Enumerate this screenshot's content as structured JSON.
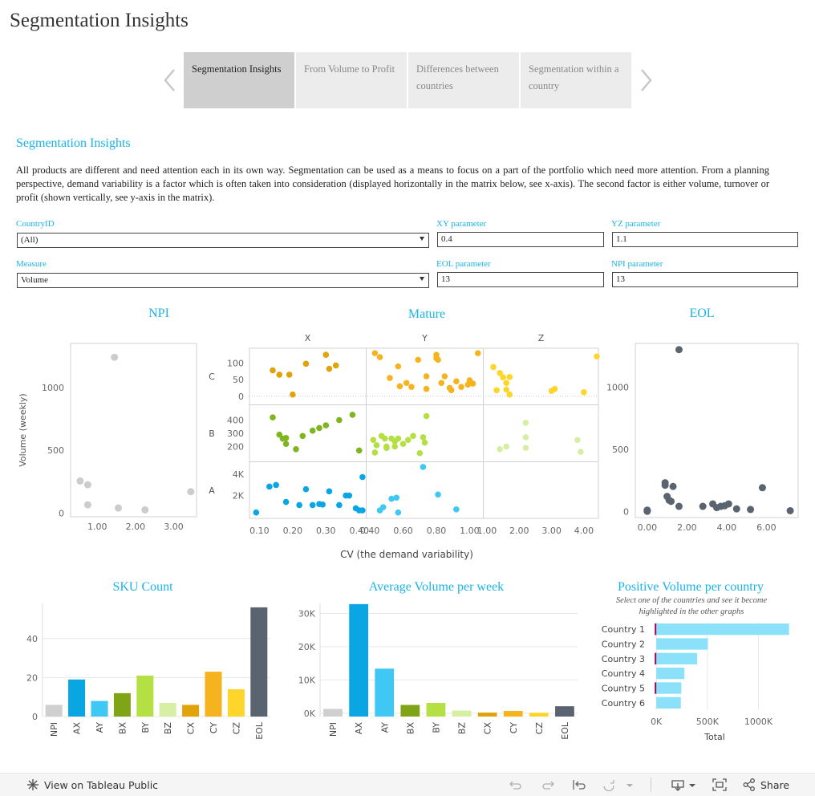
{
  "page": {
    "title": "Segmentation Insights"
  },
  "tabs": [
    {
      "label": "Segmentation Insights",
      "active": true
    },
    {
      "label": "From Volume to Profit",
      "active": false
    },
    {
      "label": "Differences between countries",
      "active": false
    },
    {
      "label": "Segmentation within a country",
      "active": false
    }
  ],
  "section": {
    "heading": "Segmentation Insights",
    "intro": "All products are different and need attention each in its own way. Segmentation can be used as a means to focus on a part of the portfolio which need more attention. From a planning perspective, demand variability is a factor which is often taken into consideration (displayed horizontally in the matrix below, see x-axis). The second factor is either volume, turnover or profit (shown vertically, see y-axis in the matrix)."
  },
  "filters": {
    "country": {
      "label": "CountryID",
      "value": "(All)"
    },
    "measure": {
      "label": "Measure",
      "value": "Volume"
    },
    "xy": {
      "label": "XY parameter",
      "value": "0.4"
    },
    "yz": {
      "label": "YZ parameter",
      "value": "1.1"
    },
    "eol": {
      "label": "EOL parameter",
      "value": "13"
    },
    "npi": {
      "label": "NPI parameter",
      "value": "13"
    }
  },
  "colors": {
    "accent": "#1ab4e6",
    "A": "#29b6e8",
    "B": "#7fb51e",
    "C": "#f5b41f",
    "npi": "#cccccc",
    "eol": "#5a6470",
    "highlight": "#a0005a"
  },
  "chart_data": [
    {
      "id": "npi",
      "type": "scatter",
      "title": "NPI",
      "ylabel": "Volume (weekly)",
      "xlim": [
        0.3,
        3.6
      ],
      "ylim": [
        -30,
        1350
      ],
      "xticks": [
        1.0,
        2.0,
        3.0
      ],
      "xtick_labels": [
        "1.00",
        "2.00",
        "3.00"
      ],
      "yticks": [
        0,
        500,
        1000
      ],
      "ytick_labels": [
        "0",
        "500",
        "1000"
      ],
      "points": [
        [
          1.45,
          1240
        ],
        [
          0.55,
          255
        ],
        [
          0.75,
          225
        ],
        [
          0.75,
          65
        ],
        [
          1.55,
          40
        ],
        [
          2.25,
          25
        ],
        [
          3.45,
          170
        ]
      ]
    },
    {
      "id": "mature",
      "type": "scatter",
      "title": "Mature",
      "xlabel": "CV (the demand variability)",
      "columns": [
        "X",
        "Y",
        "Z"
      ],
      "rows": [
        "C",
        "B",
        "A"
      ],
      "col_ranges": [
        [
          0.07,
          0.42
        ],
        [
          0.38,
          1.08
        ],
        [
          0.9,
          4.45
        ]
      ],
      "col_ticks": [
        [
          0.1,
          0.2,
          0.3,
          0.4
        ],
        [
          0.4,
          0.6,
          0.8,
          1.0
        ],
        [
          1.0,
          2.0,
          3.0,
          4.0
        ]
      ],
      "col_tick_labels": [
        [
          "0.10",
          "0.20",
          "0.30",
          "0.40"
        ],
        [
          "0.40",
          "0.60",
          "0.80",
          "1.00"
        ],
        [
          "1.00",
          "2.00",
          "3.00",
          "4.00"
        ]
      ],
      "row_ranges": [
        [
          -20,
          140
        ],
        [
          100,
          500
        ],
        [
          0,
          5000
        ]
      ],
      "row_ticks": [
        [
          0,
          50,
          100
        ],
        [
          200,
          300,
          400
        ],
        [
          2000,
          4000
        ]
      ],
      "row_tick_labels": [
        [
          "0",
          "50",
          "100"
        ],
        [
          "200",
          "300",
          "400"
        ],
        [
          "2K",
          "4K"
        ]
      ],
      "cells": [
        {
          "col": 0,
          "row": 0,
          "points": [
            [
              0.14,
              78
            ],
            [
              0.16,
              65
            ],
            [
              0.19,
              65
            ],
            [
              0.24,
              98
            ],
            [
              0.2,
              5
            ],
            [
              0.3,
              125
            ],
            [
              0.31,
              83
            ],
            [
              0.33,
              93
            ]
          ]
        },
        {
          "col": 1,
          "row": 0,
          "points": [
            [
              0.43,
              130
            ],
            [
              0.46,
              118
            ],
            [
              0.52,
              55
            ],
            [
              0.57,
              90
            ],
            [
              0.58,
              30
            ],
            [
              0.62,
              40
            ],
            [
              0.65,
              28
            ],
            [
              0.69,
              110
            ],
            [
              0.74,
              22
            ],
            [
              0.8,
              115
            ],
            [
              0.8,
              125
            ],
            [
              0.81,
              110
            ],
            [
              0.83,
              40
            ],
            [
              0.85,
              60
            ],
            [
              0.88,
              25
            ],
            [
              0.89,
              18
            ],
            [
              0.92,
              45
            ],
            [
              0.95,
              28
            ],
            [
              0.99,
              35
            ],
            [
              1.0,
              48
            ],
            [
              1.02,
              38
            ],
            [
              1.05,
              130
            ],
            [
              0.74,
              60
            ]
          ]
        },
        {
          "col": 2,
          "row": 0,
          "points": [
            [
              1.2,
              88
            ],
            [
              1.4,
              70
            ],
            [
              1.5,
              57
            ],
            [
              1.6,
              40
            ],
            [
              1.7,
              58
            ],
            [
              1.6,
              20
            ],
            [
              1.7,
              5
            ],
            [
              1.3,
              18
            ],
            [
              3.0,
              16
            ],
            [
              3.1,
              22
            ],
            [
              4.0,
              12
            ],
            [
              4.4,
              120
            ]
          ]
        },
        {
          "col": 0,
          "row": 1,
          "points": [
            [
              0.14,
              420
            ],
            [
              0.16,
              290
            ],
            [
              0.17,
              260
            ],
            [
              0.18,
              220
            ],
            [
              0.18,
              265
            ],
            [
              0.23,
              280
            ],
            [
              0.26,
              320
            ],
            [
              0.28,
              340
            ],
            [
              0.3,
              360
            ],
            [
              0.34,
              400
            ],
            [
              0.38,
              440
            ],
            [
              0.4,
              170
            ],
            [
              0.21,
              180
            ]
          ]
        },
        {
          "col": 1,
          "row": 1,
          "points": [
            [
              0.42,
              250
            ],
            [
              0.44,
              210
            ],
            [
              0.47,
              280
            ],
            [
              0.49,
              260
            ],
            [
              0.5,
              190
            ],
            [
              0.53,
              260
            ],
            [
              0.55,
              240
            ],
            [
              0.57,
              260
            ],
            [
              0.6,
              220
            ],
            [
              0.63,
              250
            ],
            [
              0.66,
              280
            ],
            [
              0.7,
              150
            ],
            [
              0.72,
              270
            ],
            [
              0.73,
              230
            ],
            [
              0.74,
              430
            ],
            [
              0.55,
              200
            ],
            [
              0.5,
              200
            ],
            [
              0.43,
              155
            ]
          ]
        },
        {
          "col": 2,
          "row": 1,
          "points": [
            [
              1.4,
              180
            ],
            [
              1.6,
              200
            ],
            [
              2.2,
              190
            ],
            [
              2.2,
              270
            ],
            [
              2.2,
              380
            ],
            [
              3.8,
              250
            ],
            [
              3.9,
              160
            ]
          ]
        },
        {
          "col": 0,
          "row": 2,
          "points": [
            [
              0.09,
              400
            ],
            [
              0.13,
              2850
            ],
            [
              0.15,
              3000
            ],
            [
              0.18,
              1400
            ],
            [
              0.22,
              1100
            ],
            [
              0.24,
              2600
            ],
            [
              0.26,
              1100
            ],
            [
              0.28,
              1200
            ],
            [
              0.29,
              1150
            ],
            [
              0.31,
              2400
            ],
            [
              0.34,
              1100
            ],
            [
              0.36,
              2000
            ],
            [
              0.37,
              2000
            ],
            [
              0.39,
              800
            ],
            [
              0.4,
              600
            ],
            [
              0.41,
              3750
            ],
            [
              0.41,
              600
            ]
          ]
        },
        {
          "col": 1,
          "row": 2,
          "points": [
            [
              0.46,
              600
            ],
            [
              0.48,
              900
            ],
            [
              0.53,
              1700
            ],
            [
              0.56,
              1800
            ],
            [
              0.57,
              400
            ],
            [
              0.72,
              4700
            ],
            [
              0.81,
              2100
            ],
            [
              0.92,
              700
            ]
          ]
        },
        {
          "col": 2,
          "row": 2,
          "points": []
        }
      ]
    },
    {
      "id": "eol",
      "type": "scatter",
      "title": "EOL",
      "xlim": [
        -0.6,
        7.6
      ],
      "ylim": [
        -50,
        1350
      ],
      "xticks": [
        0,
        2,
        4,
        6
      ],
      "xtick_labels": [
        "0.00",
        "2.00",
        "4.00",
        "6.00"
      ],
      "yticks": [
        0,
        500,
        1000
      ],
      "ytick_labels": [
        "0",
        "500",
        "1000"
      ],
      "points": [
        [
          1.6,
          1300
        ],
        [
          0,
          5
        ],
        [
          0,
          0
        ],
        [
          0,
          10
        ],
        [
          0.9,
          230
        ],
        [
          0.9,
          210
        ],
        [
          1.0,
          120
        ],
        [
          1.1,
          90
        ],
        [
          1.2,
          80
        ],
        [
          1.3,
          200
        ],
        [
          1.6,
          40
        ],
        [
          2.8,
          40
        ],
        [
          3.3,
          60
        ],
        [
          3.5,
          30
        ],
        [
          3.7,
          40
        ],
        [
          3.9,
          45
        ],
        [
          4.1,
          60
        ],
        [
          4.5,
          20
        ],
        [
          5.2,
          15
        ],
        [
          5.8,
          190
        ],
        [
          7.2,
          5
        ]
      ]
    },
    {
      "id": "sku-count",
      "type": "bar",
      "title": "SKU Count",
      "categories": [
        "NPI",
        "AX",
        "AY",
        "BX",
        "BY",
        "BZ",
        "CX",
        "CY",
        "CZ",
        "EOL"
      ],
      "values": [
        6,
        19,
        8,
        12,
        21,
        7,
        6,
        23,
        14,
        56
      ],
      "ylim": [
        0,
        58
      ],
      "yticks": [
        0,
        20,
        40
      ],
      "ytick_labels": [
        "0",
        "20",
        "40"
      ],
      "colors": [
        "#cfcfcf",
        "#0aa5e3",
        "#3fc8f3",
        "#7fa516",
        "#b4e043",
        "#d6efa3",
        "#e1a30b",
        "#f5b41f",
        "#fed52b",
        "#5a6470"
      ]
    },
    {
      "id": "avg-volume",
      "type": "bar",
      "title": "Average Volume per week",
      "categories": [
        "NPI",
        "AX",
        "AY",
        "BX",
        "BY",
        "BZ",
        "CX",
        "CY",
        "CZ",
        "EOL"
      ],
      "values": [
        1300,
        32800,
        13400,
        2500,
        3100,
        800,
        200,
        700,
        150,
        2100
      ],
      "ylim": [
        -1000,
        33000
      ],
      "yticks": [
        0,
        10000,
        20000,
        30000
      ],
      "ytick_labels": [
        "0K",
        "10K",
        "20K",
        "30K"
      ],
      "colors": [
        "#cfcfcf",
        "#0aa5e3",
        "#3fc8f3",
        "#7fa516",
        "#b4e043",
        "#d6efa3",
        "#e1a30b",
        "#f5b41f",
        "#fed52b",
        "#5a6470"
      ]
    },
    {
      "id": "positive-volume",
      "type": "bar",
      "orientation": "horizontal",
      "title": "Positive Volume per country",
      "subtitle": "Select one of the countries and see it become highlighted in the other graphs",
      "categories": [
        "Country 1",
        "Country 2",
        "Country 3",
        "Country 4",
        "Country 5",
        "Country 6"
      ],
      "values": [
        1300000,
        505000,
        400000,
        275000,
        245000,
        240000
      ],
      "xlim": [
        -80000,
        1350000
      ],
      "xticks": [
        0,
        500000,
        1000000
      ],
      "xtick_labels": [
        "0K",
        "500K",
        "1000K"
      ],
      "xlabel": "Total",
      "bar_color": "#8be1fa"
    }
  ],
  "footer": {
    "view_label": "View on Tableau Public",
    "share_label": "Share",
    "icons": [
      "tableau-logo-icon",
      "undo-icon",
      "redo-icon",
      "revert-icon",
      "refresh-icon",
      "download-icon",
      "fullscreen-icon",
      "share-icon"
    ]
  }
}
